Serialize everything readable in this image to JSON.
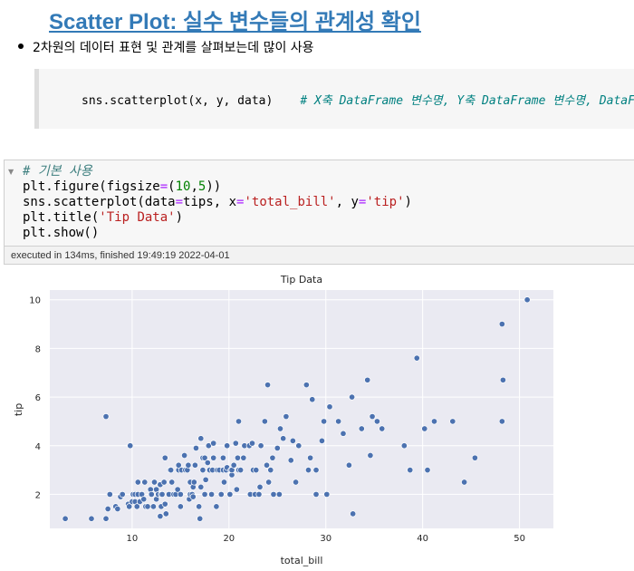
{
  "heading": "Scatter Plot: 실수 변수들의 관계성 확인",
  "bullet": "2차원의 데이터 표현 및 관계를 살펴보는데 많이 사용",
  "quote_code": {
    "code": "sns.scatterplot(x, y, data)",
    "comment": "# X축 DataFrame 변수명, Y축 DataFrame 변수명, DataFrame"
  },
  "cell": {
    "collapse_icon": "triangle-down-icon",
    "line1_comment": "# 기본 사용",
    "line2_a": "plt.figure(figsize",
    "line2_op": "=",
    "line2_b": "(",
    "line2_n1": "10",
    "line2_c": ",",
    "line2_n2": "5",
    "line2_d": "))",
    "line3_a": "sns.scatterplot(data",
    "line3_op1": "=",
    "line3_b": "tips, x",
    "line3_op2": "=",
    "line3_s1": "'total_bill'",
    "line3_c": ", y",
    "line3_op3": "=",
    "line3_s2": "'tip'",
    "line3_d": ")",
    "line4_a": "plt.title(",
    "line4_s": "'Tip Data'",
    "line4_b": ")",
    "line5": "plt.show()",
    "exec_status": "executed in 134ms, finished 19:49:19 2022-04-01"
  },
  "chart_data": {
    "type": "scatter",
    "title": "Tip Data",
    "xlabel": "total_bill",
    "ylabel": "tip",
    "xlim": [
      1.5,
      53.5
    ],
    "ylim": [
      0.6,
      10.4
    ],
    "xticks": [
      10,
      20,
      30,
      40,
      50
    ],
    "yticks": [
      2,
      4,
      6,
      8,
      10
    ],
    "grid": true,
    "background": "#eaeaf2",
    "point_color": "#4c72b0",
    "points": [
      [
        3.1,
        1.0
      ],
      [
        5.8,
        1.0
      ],
      [
        7.3,
        1.0
      ],
      [
        7.3,
        5.2
      ],
      [
        7.5,
        1.4
      ],
      [
        7.7,
        2.0
      ],
      [
        8.3,
        1.5
      ],
      [
        8.5,
        1.4
      ],
      [
        8.8,
        1.9
      ],
      [
        9.0,
        2.0
      ],
      [
        9.6,
        1.6
      ],
      [
        9.7,
        1.5
      ],
      [
        9.8,
        4.0
      ],
      [
        10.0,
        1.7
      ],
      [
        10.1,
        2.0
      ],
      [
        10.3,
        1.7
      ],
      [
        10.3,
        2.0
      ],
      [
        10.5,
        1.5
      ],
      [
        10.6,
        2.0
      ],
      [
        10.6,
        2.5
      ],
      [
        10.8,
        1.7
      ],
      [
        11.0,
        2.0
      ],
      [
        11.2,
        1.8
      ],
      [
        11.3,
        2.5
      ],
      [
        11.4,
        1.5
      ],
      [
        11.6,
        1.5
      ],
      [
        11.9,
        2.2
      ],
      [
        12.0,
        2.0
      ],
      [
        12.2,
        1.5
      ],
      [
        12.3,
        2.5
      ],
      [
        12.5,
        1.8
      ],
      [
        12.5,
        2.2
      ],
      [
        12.7,
        2.0
      ],
      [
        12.9,
        1.1
      ],
      [
        12.9,
        2.4
      ],
      [
        13.0,
        2.0
      ],
      [
        13.0,
        1.5
      ],
      [
        13.1,
        2.0
      ],
      [
        13.3,
        2.5
      ],
      [
        13.4,
        3.5
      ],
      [
        13.4,
        1.6
      ],
      [
        13.5,
        1.2
      ],
      [
        13.8,
        2.0
      ],
      [
        13.9,
        3.0
      ],
      [
        14.0,
        3.0
      ],
      [
        14.1,
        2.5
      ],
      [
        14.3,
        2.0
      ],
      [
        14.5,
        2.0
      ],
      [
        14.7,
        2.2
      ],
      [
        14.8,
        3.0
      ],
      [
        14.8,
        3.2
      ],
      [
        15.0,
        1.5
      ],
      [
        15.0,
        2.0
      ],
      [
        15.1,
        3.0
      ],
      [
        15.4,
        3.6
      ],
      [
        15.5,
        3.0
      ],
      [
        15.7,
        3.0
      ],
      [
        15.8,
        3.2
      ],
      [
        15.9,
        1.8
      ],
      [
        16.0,
        2.0
      ],
      [
        16.0,
        2.5
      ],
      [
        16.2,
        2.0
      ],
      [
        16.3,
        1.9
      ],
      [
        16.3,
        2.3
      ],
      [
        16.4,
        2.5
      ],
      [
        16.5,
        3.2
      ],
      [
        16.6,
        3.9
      ],
      [
        16.9,
        1.5
      ],
      [
        17.0,
        1.0
      ],
      [
        17.1,
        2.3
      ],
      [
        17.1,
        4.3
      ],
      [
        17.3,
        3.0
      ],
      [
        17.3,
        3.5
      ],
      [
        17.5,
        2.0
      ],
      [
        17.5,
        3.5
      ],
      [
        17.6,
        2.6
      ],
      [
        17.8,
        3.3
      ],
      [
        17.9,
        4.0
      ],
      [
        18.0,
        3.0
      ],
      [
        18.2,
        2.0
      ],
      [
        18.3,
        3.0
      ],
      [
        18.4,
        3.5
      ],
      [
        18.4,
        4.1
      ],
      [
        18.7,
        1.5
      ],
      [
        18.8,
        3.0
      ],
      [
        19.0,
        3.0
      ],
      [
        19.2,
        2.0
      ],
      [
        19.4,
        3.0
      ],
      [
        19.4,
        3.5
      ],
      [
        19.5,
        2.5
      ],
      [
        19.7,
        3.0
      ],
      [
        19.8,
        3.1
      ],
      [
        19.8,
        4.0
      ],
      [
        20.1,
        2.0
      ],
      [
        20.2,
        3.0
      ],
      [
        20.3,
        2.8
      ],
      [
        20.3,
        3.0
      ],
      [
        20.5,
        3.2
      ],
      [
        20.7,
        4.1
      ],
      [
        20.8,
        2.2
      ],
      [
        20.9,
        3.5
      ],
      [
        21.0,
        3.0
      ],
      [
        21.0,
        5.0
      ],
      [
        21.2,
        3.0
      ],
      [
        21.5,
        3.5
      ],
      [
        21.6,
        4.0
      ],
      [
        22.1,
        4.0
      ],
      [
        22.2,
        2.0
      ],
      [
        22.4,
        4.1
      ],
      [
        22.5,
        3.0
      ],
      [
        22.7,
        2.0
      ],
      [
        22.8,
        3.0
      ],
      [
        23.1,
        2.0
      ],
      [
        23.2,
        2.3
      ],
      [
        23.3,
        4.0
      ],
      [
        23.7,
        5.0
      ],
      [
        23.9,
        3.2
      ],
      [
        24.0,
        6.5
      ],
      [
        24.1,
        2.5
      ],
      [
        24.3,
        3.0
      ],
      [
        24.5,
        3.5
      ],
      [
        24.6,
        2.0
      ],
      [
        25.0,
        3.9
      ],
      [
        25.2,
        2.0
      ],
      [
        25.3,
        4.7
      ],
      [
        25.6,
        4.3
      ],
      [
        25.9,
        5.2
      ],
      [
        26.4,
        3.4
      ],
      [
        26.6,
        4.2
      ],
      [
        26.9,
        2.5
      ],
      [
        27.2,
        4.0
      ],
      [
        28.0,
        6.5
      ],
      [
        28.2,
        3.0
      ],
      [
        28.4,
        3.5
      ],
      [
        28.6,
        5.9
      ],
      [
        29.0,
        2.0
      ],
      [
        29.0,
        3.0
      ],
      [
        29.6,
        4.2
      ],
      [
        29.8,
        5.0
      ],
      [
        30.1,
        2.0
      ],
      [
        30.4,
        5.6
      ],
      [
        31.3,
        5.0
      ],
      [
        31.8,
        4.5
      ],
      [
        32.4,
        3.2
      ],
      [
        32.7,
        6.0
      ],
      [
        32.8,
        1.2
      ],
      [
        33.7,
        4.7
      ],
      [
        34.3,
        6.7
      ],
      [
        34.6,
        3.6
      ],
      [
        34.8,
        5.2
      ],
      [
        35.3,
        5.0
      ],
      [
        35.8,
        4.7
      ],
      [
        38.1,
        4.0
      ],
      [
        38.7,
        3.0
      ],
      [
        39.4,
        7.6
      ],
      [
        40.2,
        4.7
      ],
      [
        40.5,
        3.0
      ],
      [
        41.2,
        5.0
      ],
      [
        43.1,
        5.0
      ],
      [
        44.3,
        2.5
      ],
      [
        45.4,
        3.5
      ],
      [
        48.2,
        9.0
      ],
      [
        48.3,
        6.7
      ],
      [
        48.2,
        5.0
      ],
      [
        50.8,
        10.0
      ]
    ]
  }
}
